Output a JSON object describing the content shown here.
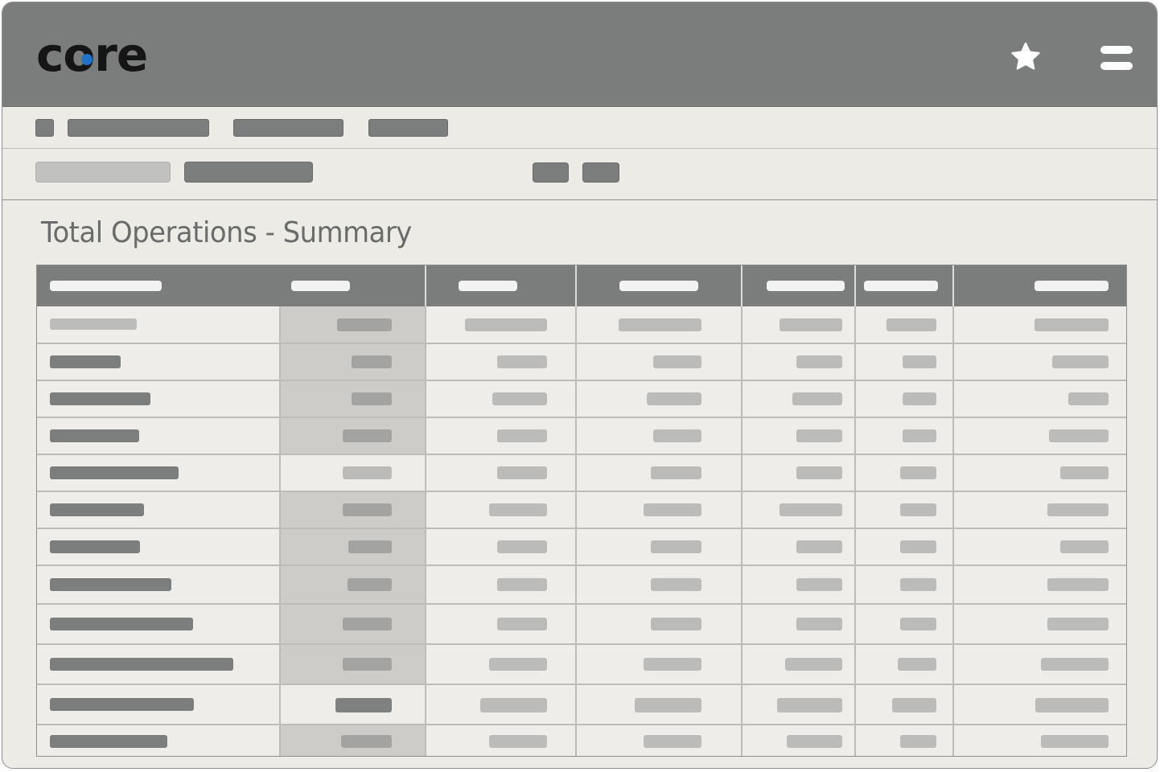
{
  "app": {
    "logo_text": "core",
    "logo_dot_color": "#1f73c9",
    "header_color": "#7b7c7c"
  },
  "header": {
    "favorite_icon": "star-icon",
    "menu_icon": "hamburger-menu-icon"
  },
  "nav": {
    "items": [
      "",
      "",
      "",
      ""
    ]
  },
  "toolbar": {
    "items": [
      "",
      "",
      "",
      ""
    ]
  },
  "page": {
    "title": "Total Operations - Summary"
  },
  "table": {
    "column_count": 7,
    "row_count": 12,
    "highlighted_column_index": 1,
    "columns": [
      "",
      "",
      "",
      "",
      "",
      "",
      ""
    ],
    "rows": [
      [
        "",
        "",
        "",
        "",
        "",
        "",
        ""
      ],
      [
        "",
        "",
        "",
        "",
        "",
        "",
        ""
      ],
      [
        "",
        "",
        "",
        "",
        "",
        "",
        ""
      ],
      [
        "",
        "",
        "",
        "",
        "",
        "",
        ""
      ],
      [
        "",
        "",
        "",
        "",
        "",
        "",
        ""
      ],
      [
        "",
        "",
        "",
        "",
        "",
        "",
        ""
      ],
      [
        "",
        "",
        "",
        "",
        "",
        "",
        ""
      ],
      [
        "",
        "",
        "",
        "",
        "",
        "",
        ""
      ],
      [
        "",
        "",
        "",
        "",
        "",
        "",
        ""
      ],
      [
        "",
        "",
        "",
        "",
        "",
        "",
        ""
      ],
      [
        "",
        "",
        "",
        "",
        "",
        "",
        ""
      ],
      [
        "",
        "",
        "",
        "",
        "",
        "",
        ""
      ]
    ]
  }
}
